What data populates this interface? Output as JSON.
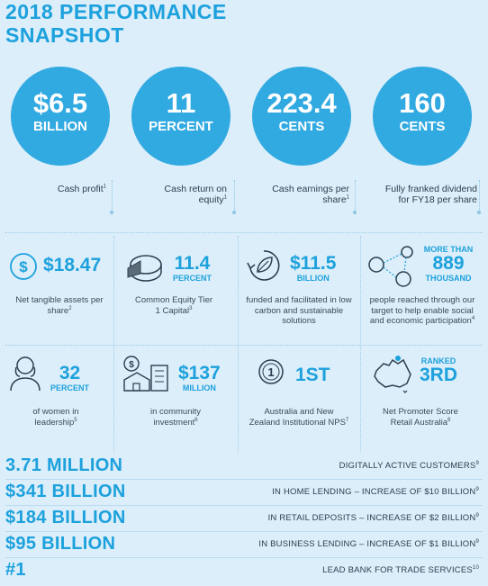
{
  "title": "2018 PERFORMANCE SNAPSHOT",
  "circles": [
    {
      "value": "$6.5",
      "unit": "BILLION",
      "label": "Cash profit",
      "note": "1"
    },
    {
      "value": "11",
      "unit": "PERCENT",
      "label": "Cash return on equity",
      "note": "1"
    },
    {
      "value": "223.4",
      "unit": "CENTS",
      "label": "Cash earnings per share",
      "note": "1"
    },
    {
      "value": "160",
      "unit": "CENTS",
      "label": "Fully franked dividend for FY18 per share",
      "note": ""
    }
  ],
  "grid": {
    "row1": [
      {
        "value": "$18.47",
        "unit": "",
        "desc": "Net tangible assets per share",
        "note": "2",
        "icon": "dollar-coin-icon"
      },
      {
        "value": "11.4",
        "unit": "PERCENT",
        "desc": "Common Equity Tier 1 Capital",
        "note": "3",
        "icon": "pie-chart-icon"
      },
      {
        "value": "$11.5",
        "unit": "BILLION",
        "desc": "funded and facilitated in low carbon and sustainable solutions",
        "note": "",
        "icon": "leaf-recycle-icon"
      },
      {
        "prefix": "MORE THAN",
        "value": "889",
        "unit": "THOUSAND",
        "desc": "people reached through our target to help enable social and economic participation",
        "note": "4",
        "icon": "people-network-icon"
      }
    ],
    "row2": [
      {
        "value": "32",
        "unit": "PERCENT",
        "desc": "of women in leadership",
        "note": "5",
        "icon": "woman-icon"
      },
      {
        "value": "$137",
        "unit": "MILLION",
        "desc": "in community investment",
        "note": "6",
        "icon": "community-house-icon"
      },
      {
        "value": "1ST",
        "unit": "",
        "desc": "Australia and New Zealand Institutional NPS",
        "note": "7",
        "icon": "first-medal-icon"
      },
      {
        "prefix": "RANKED",
        "value": "3RD",
        "unit": "",
        "desc": "Net Promoter Score Retail Australia",
        "note": "8",
        "icon": "australia-map-icon"
      }
    ]
  },
  "rows": [
    {
      "value": "3.71 MILLION",
      "label": "DIGITALLY ACTIVE CUSTOMERS",
      "note": "9"
    },
    {
      "value": "$341 BILLION",
      "label": "IN HOME LENDING – INCREASE OF $10 BILLION",
      "note": "9"
    },
    {
      "value": "$184 BILLION",
      "label": "IN RETAIL DEPOSITS – INCREASE OF $2 BILLION",
      "note": "9"
    },
    {
      "value": "$95 BILLION",
      "label": "IN BUSINESS LENDING – INCREASE OF $1 BILLION",
      "note": "9"
    },
    {
      "value": "#1",
      "label": "LEAD BANK FOR TRADE SERVICES",
      "note": "10"
    }
  ],
  "colors": {
    "accent": "#1da1dd",
    "circle": "#31a9e1",
    "background": "#dbeef9",
    "text": "#2c3e4f"
  }
}
